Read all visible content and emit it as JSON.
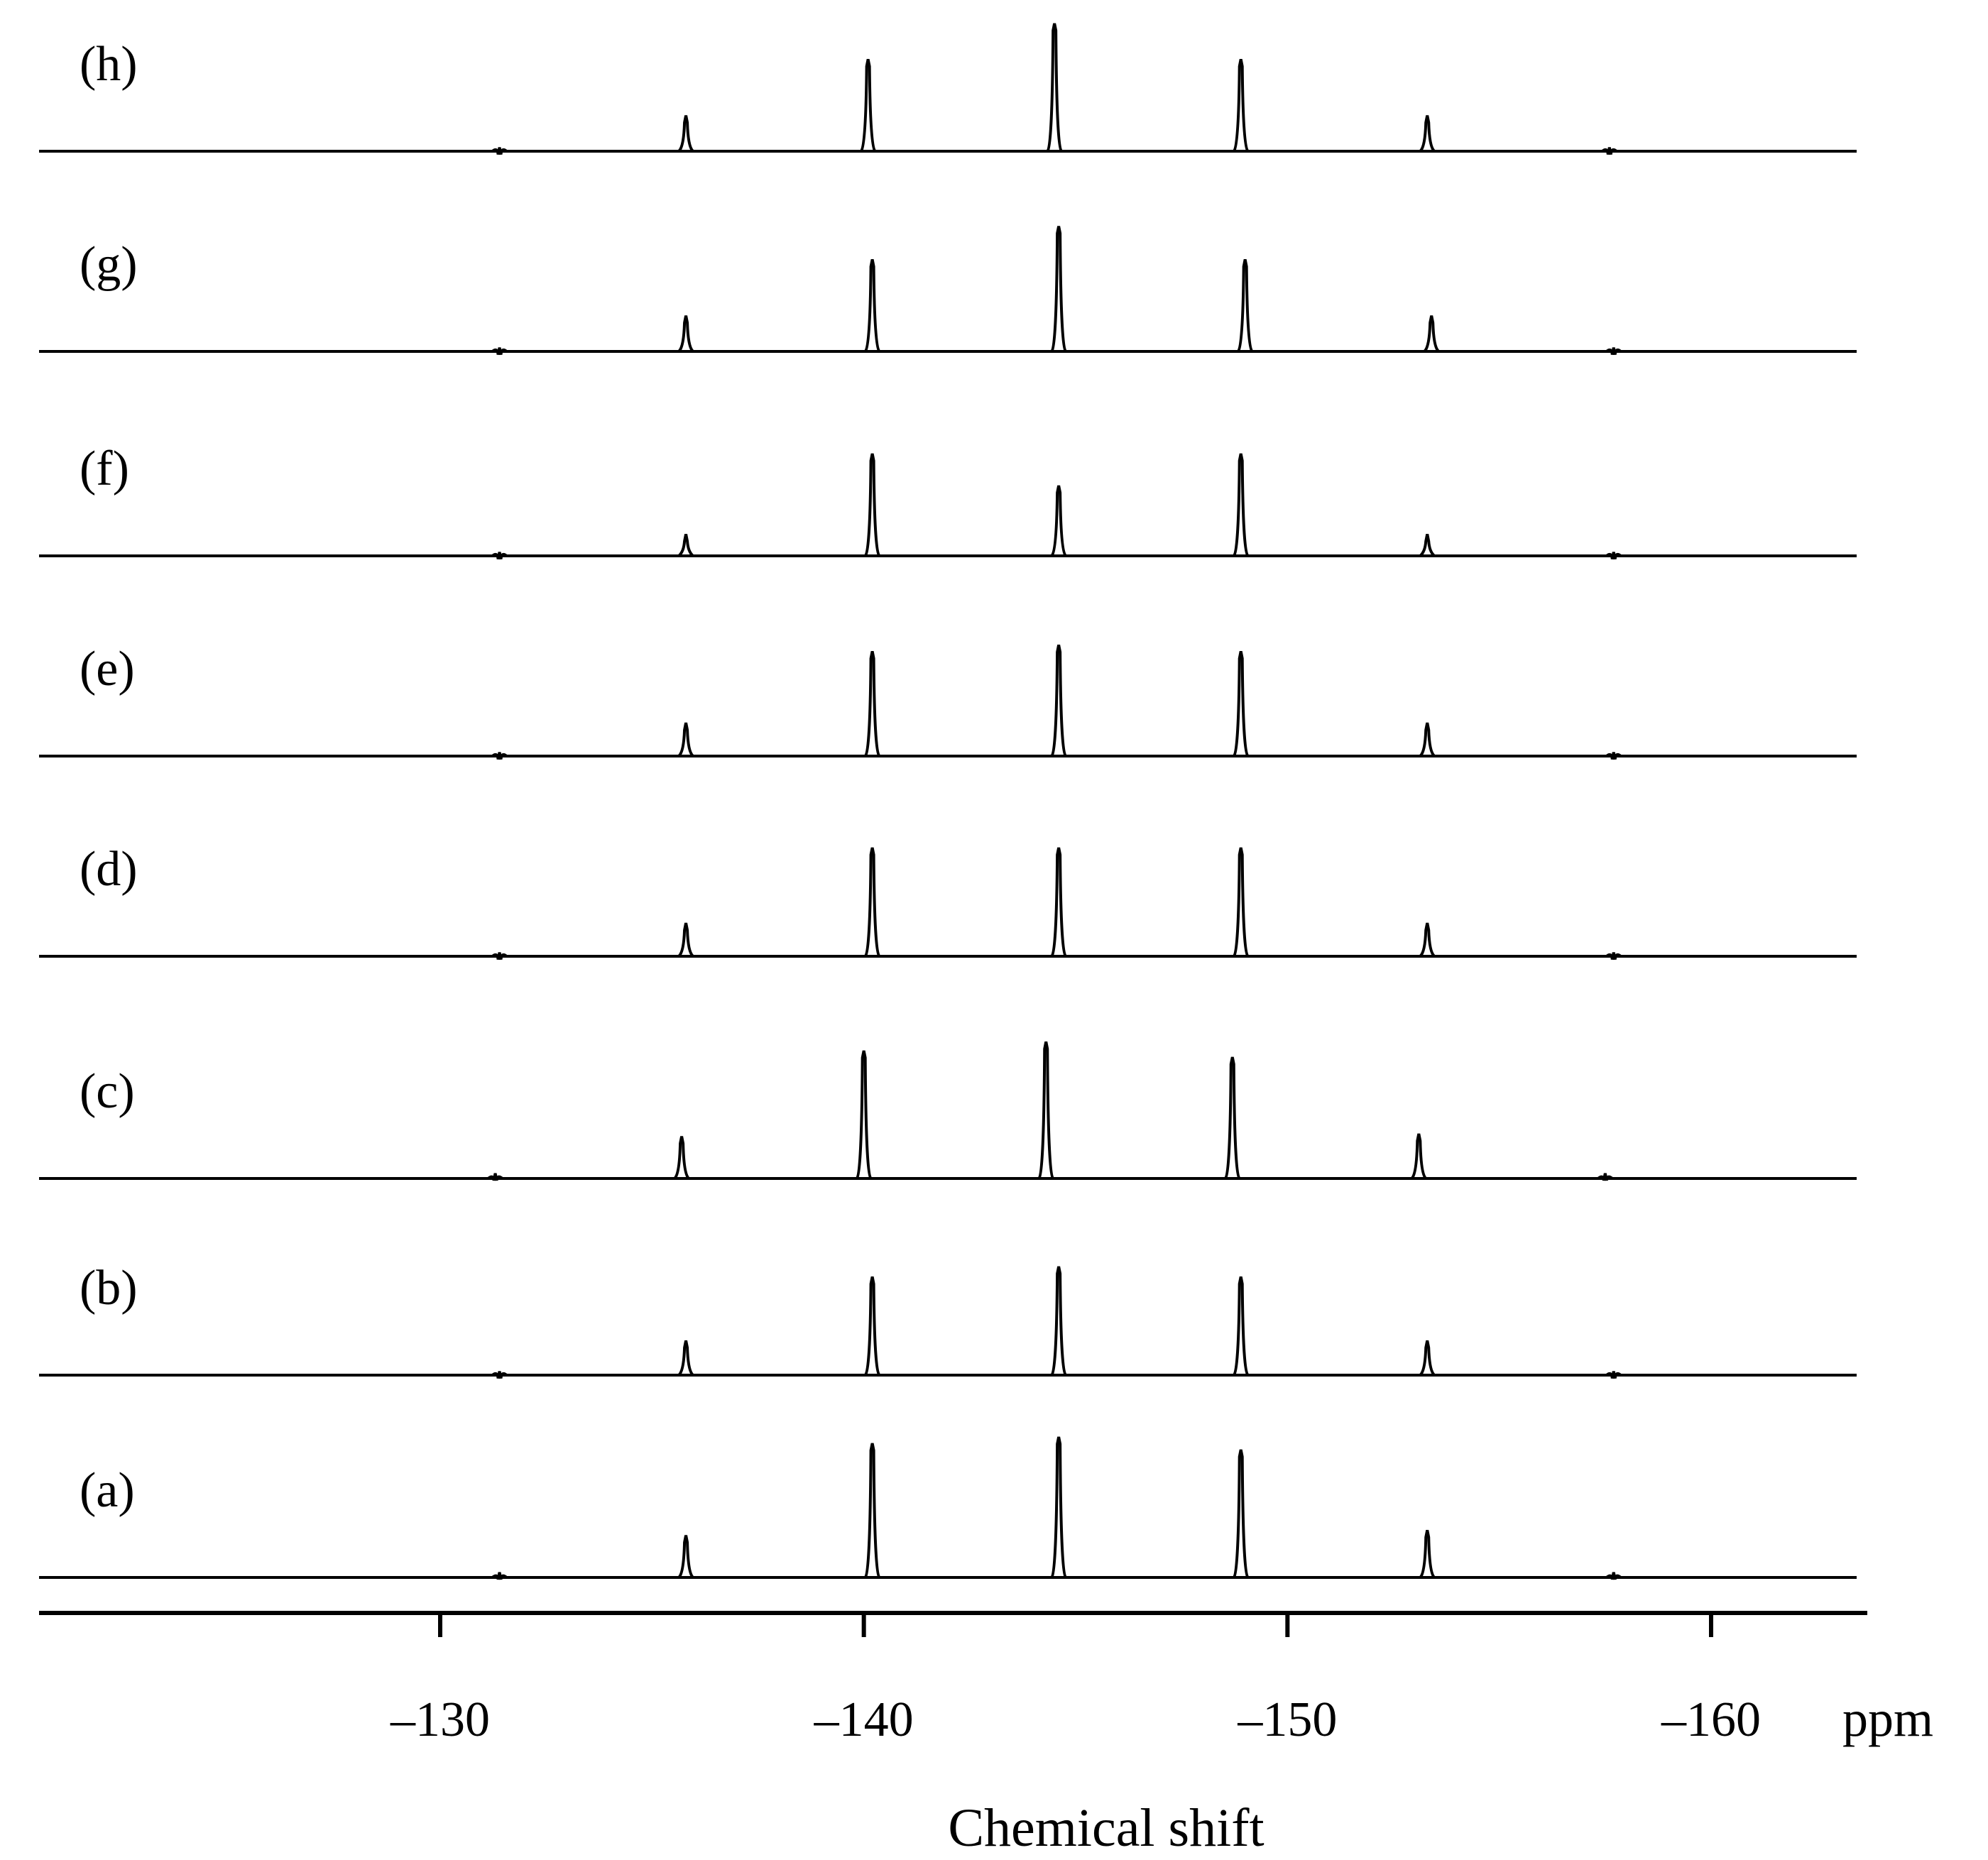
{
  "chart_data": {
    "type": "line",
    "xlabel": "Chemical shift",
    "x_unit": "ppm",
    "xlim": [
      -120.5,
      -163.5
    ],
    "x_reversed": true,
    "x_ticks": [
      -130,
      -140,
      -150,
      -160
    ],
    "x_tick_labels": [
      "–130",
      "–140",
      "–150",
      "–160"
    ],
    "grid": false,
    "legend": "none",
    "series": [
      {
        "name": "(h)",
        "peaks": [
          [
            -131.4,
            0.03
          ],
          [
            -135.8,
            0.28
          ],
          [
            -140.1,
            0.72
          ],
          [
            -144.5,
            1.0
          ],
          [
            -148.9,
            0.72
          ],
          [
            -153.3,
            0.28
          ],
          [
            -157.6,
            0.03
          ]
        ]
      },
      {
        "name": "(g)",
        "peaks": [
          [
            -131.4,
            0.03
          ],
          [
            -135.8,
            0.28
          ],
          [
            -140.2,
            0.72
          ],
          [
            -144.6,
            0.98
          ],
          [
            -149.0,
            0.72
          ],
          [
            -153.4,
            0.28
          ],
          [
            -157.7,
            0.03
          ]
        ]
      },
      {
        "name": "(f)",
        "peaks": [
          [
            -131.4,
            0.03
          ],
          [
            -135.8,
            0.17
          ],
          [
            -140.2,
            0.8
          ],
          [
            -144.6,
            0.55
          ],
          [
            -148.9,
            0.8
          ],
          [
            -153.3,
            0.17
          ],
          [
            -157.7,
            0.03
          ]
        ]
      },
      {
        "name": "(e)",
        "peaks": [
          [
            -131.4,
            0.03
          ],
          [
            -135.8,
            0.26
          ],
          [
            -140.2,
            0.82
          ],
          [
            -144.6,
            0.87
          ],
          [
            -148.9,
            0.82
          ],
          [
            -153.3,
            0.26
          ],
          [
            -157.7,
            0.03
          ]
        ]
      },
      {
        "name": "(d)",
        "peaks": [
          [
            -131.4,
            0.03
          ],
          [
            -135.8,
            0.26
          ],
          [
            -140.2,
            0.85
          ],
          [
            -144.6,
            0.85
          ],
          [
            -148.9,
            0.85
          ],
          [
            -153.3,
            0.26
          ],
          [
            -157.7,
            0.03
          ]
        ]
      },
      {
        "name": "(c)",
        "peaks": [
          [
            -131.3,
            0.04
          ],
          [
            -135.7,
            0.33
          ],
          [
            -140.0,
            1.0
          ],
          [
            -144.3,
            1.07
          ],
          [
            -148.7,
            0.95
          ],
          [
            -153.1,
            0.35
          ],
          [
            -157.5,
            0.04
          ]
        ]
      },
      {
        "name": "(b)",
        "peaks": [
          [
            -131.4,
            0.03
          ],
          [
            -135.8,
            0.27
          ],
          [
            -140.2,
            0.77
          ],
          [
            -144.6,
            0.85
          ],
          [
            -148.9,
            0.77
          ],
          [
            -153.3,
            0.27
          ],
          [
            -157.7,
            0.03
          ]
        ]
      },
      {
        "name": "(a)",
        "peaks": [
          [
            -131.4,
            0.04
          ],
          [
            -135.8,
            0.33
          ],
          [
            -140.2,
            1.05
          ],
          [
            -144.6,
            1.1
          ],
          [
            -148.9,
            1.0
          ],
          [
            -153.3,
            0.37
          ],
          [
            -157.7,
            0.04
          ]
        ]
      }
    ]
  }
}
